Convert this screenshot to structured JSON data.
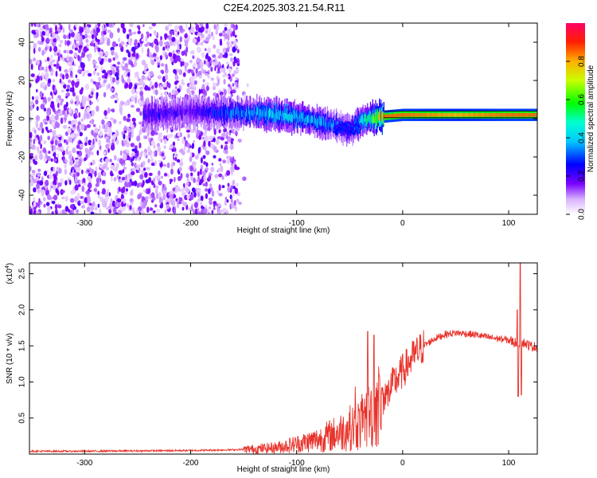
{
  "title": "C2E4.2025.303.21.54.R11",
  "chart_data": [
    {
      "type": "heatmap",
      "name": "spectrogram",
      "xlabel": "Height of straight line (km)",
      "ylabel": "Frequency (Hz)",
      "xlim": [
        -352,
        127
      ],
      "ylim": [
        -50,
        50
      ],
      "xticks": [
        "-300",
        "-200",
        "-100",
        "0",
        "100"
      ],
      "xtick_values": [
        -300,
        -200,
        -100,
        0,
        100
      ],
      "yticks": [
        "40",
        "20",
        "0",
        "-20",
        "-40"
      ],
      "ytick_values": [
        40,
        20,
        0,
        -20,
        -40
      ],
      "colorbar": {
        "label": "Normalized spectral amplitude",
        "range": [
          0.0,
          1.0
        ],
        "ticks": [
          "0.0",
          "0.2",
          "0.4",
          "0.6",
          "0.8"
        ],
        "tick_values": [
          0.0,
          0.2,
          0.4,
          0.6,
          0.8
        ]
      },
      "noise_region_x": [
        -352,
        -155
      ],
      "signal_band_center_hz": [
        [
          -240,
          2
        ],
        [
          -200,
          4
        ],
        [
          -160,
          3
        ],
        [
          -140,
          3
        ],
        [
          -120,
          2
        ],
        [
          -100,
          1
        ],
        [
          -80,
          -2
        ],
        [
          -60,
          -4
        ],
        [
          -50,
          -6
        ],
        [
          -40,
          -1
        ],
        [
          -30,
          0
        ],
        [
          -20,
          1
        ],
        [
          0,
          2
        ],
        [
          50,
          2
        ],
        [
          100,
          2
        ],
        [
          127,
          2
        ]
      ],
      "band_peak_amplitude": [
        [
          -240,
          0.25
        ],
        [
          -200,
          0.2
        ],
        [
          -160,
          0.35
        ],
        [
          -140,
          0.4
        ],
        [
          -120,
          0.45
        ],
        [
          -100,
          0.45
        ],
        [
          -80,
          0.4
        ],
        [
          -60,
          0.35
        ],
        [
          -50,
          0.3
        ],
        [
          -40,
          0.45
        ],
        [
          -30,
          0.55
        ],
        [
          -20,
          0.85
        ],
        [
          0,
          0.85
        ],
        [
          50,
          0.8
        ],
        [
          100,
          0.85
        ],
        [
          127,
          0.85
        ]
      ]
    },
    {
      "type": "line",
      "name": "snr",
      "xlabel": "Height of straight line (km)",
      "ylabel": "SNR (10 * v/v)",
      "multiplier": "(x10",
      "multiplier_exp": "4",
      "multiplier_close": ")",
      "xlim": [
        -352,
        127
      ],
      "ylim": [
        0,
        26500
      ],
      "xticks": [
        "-300",
        "-200",
        "-100",
        "0",
        "100"
      ],
      "xtick_values": [
        -300,
        -200,
        -100,
        0,
        100
      ],
      "yticks": [
        "0.5",
        "1.0",
        "1.5",
        "2.0",
        "2.5"
      ],
      "ytick_values": [
        5000,
        10000,
        15000,
        20000,
        25000
      ],
      "color": "#e8322a",
      "trend": [
        [
          -352,
          400
        ],
        [
          -300,
          400
        ],
        [
          -250,
          450
        ],
        [
          -200,
          500
        ],
        [
          -160,
          600
        ],
        [
          -140,
          700
        ],
        [
          -120,
          900
        ],
        [
          -100,
          1400
        ],
        [
          -80,
          2000
        ],
        [
          -60,
          3000
        ],
        [
          -40,
          4200
        ],
        [
          -30,
          5500
        ],
        [
          -20,
          7500
        ],
        [
          -15,
          8000
        ],
        [
          -10,
          9500
        ],
        [
          0,
          11500
        ],
        [
          10,
          13500
        ],
        [
          20,
          15000
        ],
        [
          30,
          16000
        ],
        [
          40,
          16600
        ],
        [
          50,
          16800
        ],
        [
          60,
          16700
        ],
        [
          70,
          16500
        ],
        [
          80,
          16200
        ],
        [
          90,
          16000
        ],
        [
          100,
          15800
        ],
        [
          105,
          15500
        ],
        [
          110,
          15500
        ],
        [
          115,
          15400
        ],
        [
          120,
          15000
        ],
        [
          127,
          14800
        ]
      ],
      "spikes": [
        [
          -33,
          17000
        ],
        [
          -27,
          16500
        ],
        [
          -22,
          11000
        ],
        [
          -19,
          9200
        ],
        [
          108,
          20000
        ],
        [
          109,
          8000
        ],
        [
          111,
          26500
        ],
        [
          112,
          8200
        ]
      ]
    }
  ]
}
